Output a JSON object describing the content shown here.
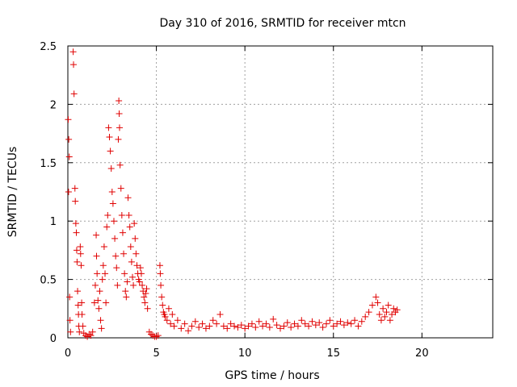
{
  "chart_data": {
    "type": "scatter",
    "title": "Day 310 of 2016, SRMTID for receiver mtcn",
    "xlabel": "GPS time / hours",
    "ylabel": "SRMTID / TECUs",
    "xlim": [
      0,
      24
    ],
    "ylim": [
      0,
      2.5
    ],
    "xticks": [
      0,
      5,
      10,
      15,
      20
    ],
    "yticks": [
      0,
      0.5,
      1,
      1.5,
      2,
      2.5
    ],
    "xtick_labels": [
      "0",
      "5",
      "10",
      "15",
      "20"
    ],
    "ytick_labels": [
      "0",
      "0.5",
      "1",
      "1.5",
      "2",
      "2.5"
    ],
    "grid": true,
    "marker": "+",
    "series": [
      {
        "name": "SRMTID",
        "color": "#e00000",
        "points": [
          [
            0.02,
            1.87
          ],
          [
            0.05,
            1.7
          ],
          [
            0.08,
            1.55
          ],
          [
            0.04,
            1.25
          ],
          [
            0.1,
            0.35
          ],
          [
            0.12,
            0.15
          ],
          [
            0.15,
            0.05
          ],
          [
            0.3,
            2.45
          ],
          [
            0.32,
            2.34
          ],
          [
            0.35,
            2.09
          ],
          [
            0.4,
            1.28
          ],
          [
            0.42,
            1.17
          ],
          [
            0.45,
            0.98
          ],
          [
            0.48,
            0.9
          ],
          [
            0.5,
            0.75
          ],
          [
            0.52,
            0.65
          ],
          [
            0.55,
            0.4
          ],
          [
            0.58,
            0.28
          ],
          [
            0.6,
            0.2
          ],
          [
            0.62,
            0.1
          ],
          [
            0.65,
            0.05
          ],
          [
            0.7,
            0.78
          ],
          [
            0.72,
            0.72
          ],
          [
            0.75,
            0.62
          ],
          [
            0.78,
            0.3
          ],
          [
            0.8,
            0.2
          ],
          [
            0.85,
            0.1
          ],
          [
            0.9,
            0.04
          ],
          [
            1.0,
            0.02
          ],
          [
            1.1,
            0.01
          ],
          [
            1.2,
            0.03
          ],
          [
            1.3,
            0.02
          ],
          [
            1.4,
            0.05
          ],
          [
            1.5,
            0.3
          ],
          [
            1.55,
            0.45
          ],
          [
            1.6,
            0.88
          ],
          [
            1.62,
            0.7
          ],
          [
            1.65,
            0.55
          ],
          [
            1.7,
            0.32
          ],
          [
            1.75,
            0.25
          ],
          [
            1.8,
            0.4
          ],
          [
            1.85,
            0.15
          ],
          [
            1.9,
            0.08
          ],
          [
            1.95,
            0.5
          ],
          [
            2.0,
            0.62
          ],
          [
            2.05,
            0.78
          ],
          [
            2.1,
            0.55
          ],
          [
            2.15,
            0.3
          ],
          [
            2.2,
            0.95
          ],
          [
            2.25,
            1.05
          ],
          [
            2.3,
            1.8
          ],
          [
            2.35,
            1.72
          ],
          [
            2.4,
            1.6
          ],
          [
            2.45,
            1.45
          ],
          [
            2.5,
            1.25
          ],
          [
            2.55,
            1.15
          ],
          [
            2.6,
            1.0
          ],
          [
            2.65,
            0.85
          ],
          [
            2.7,
            0.7
          ],
          [
            2.75,
            0.6
          ],
          [
            2.8,
            0.45
          ],
          [
            2.85,
            1.7
          ],
          [
            2.88,
            2.03
          ],
          [
            2.9,
            1.92
          ],
          [
            2.92,
            1.8
          ],
          [
            2.95,
            1.48
          ],
          [
            3.0,
            1.28
          ],
          [
            3.05,
            1.05
          ],
          [
            3.1,
            0.9
          ],
          [
            3.15,
            0.72
          ],
          [
            3.2,
            0.55
          ],
          [
            3.25,
            0.4
          ],
          [
            3.3,
            0.35
          ],
          [
            3.35,
            0.48
          ],
          [
            3.4,
            1.2
          ],
          [
            3.45,
            1.05
          ],
          [
            3.5,
            0.95
          ],
          [
            3.55,
            0.78
          ],
          [
            3.6,
            0.65
          ],
          [
            3.65,
            0.52
          ],
          [
            3.7,
            0.45
          ],
          [
            3.75,
            0.98
          ],
          [
            3.8,
            0.85
          ],
          [
            3.85,
            0.72
          ],
          [
            3.9,
            0.62
          ],
          [
            3.95,
            0.55
          ],
          [
            4.0,
            0.5
          ],
          [
            4.05,
            0.48
          ],
          [
            4.1,
            0.6
          ],
          [
            4.15,
            0.55
          ],
          [
            4.2,
            0.45
          ],
          [
            4.25,
            0.4
          ],
          [
            4.3,
            0.35
          ],
          [
            4.35,
            0.3
          ],
          [
            4.4,
            0.38
          ],
          [
            4.45,
            0.42
          ],
          [
            4.5,
            0.25
          ],
          [
            4.6,
            0.05
          ],
          [
            4.7,
            0.03
          ],
          [
            4.8,
            0.02
          ],
          [
            4.9,
            0.01
          ],
          [
            5.0,
            0.01
          ],
          [
            5.1,
            0.02
          ],
          [
            5.2,
            0.62
          ],
          [
            5.22,
            0.55
          ],
          [
            5.25,
            0.45
          ],
          [
            5.3,
            0.35
          ],
          [
            5.35,
            0.28
          ],
          [
            5.4,
            0.22
          ],
          [
            5.45,
            0.2
          ],
          [
            5.5,
            0.18
          ],
          [
            5.6,
            0.15
          ],
          [
            5.7,
            0.25
          ],
          [
            5.8,
            0.12
          ],
          [
            5.9,
            0.2
          ],
          [
            6.0,
            0.1
          ],
          [
            6.2,
            0.15
          ],
          [
            6.4,
            0.08
          ],
          [
            6.6,
            0.12
          ],
          [
            6.8,
            0.06
          ],
          [
            7.0,
            0.1
          ],
          [
            7.2,
            0.14
          ],
          [
            7.4,
            0.09
          ],
          [
            7.6,
            0.12
          ],
          [
            7.8,
            0.08
          ],
          [
            8.0,
            0.1
          ],
          [
            8.2,
            0.15
          ],
          [
            8.4,
            0.12
          ],
          [
            8.6,
            0.2
          ],
          [
            8.8,
            0.1
          ],
          [
            9.0,
            0.08
          ],
          [
            9.2,
            0.12
          ],
          [
            9.4,
            0.1
          ],
          [
            9.6,
            0.09
          ],
          [
            9.8,
            0.11
          ],
          [
            10.0,
            0.08
          ],
          [
            10.2,
            0.1
          ],
          [
            10.4,
            0.12
          ],
          [
            10.6,
            0.09
          ],
          [
            10.8,
            0.14
          ],
          [
            11.0,
            0.1
          ],
          [
            11.2,
            0.12
          ],
          [
            11.4,
            0.09
          ],
          [
            11.6,
            0.16
          ],
          [
            11.8,
            0.11
          ],
          [
            12.0,
            0.08
          ],
          [
            12.2,
            0.1
          ],
          [
            12.4,
            0.13
          ],
          [
            12.6,
            0.09
          ],
          [
            12.8,
            0.12
          ],
          [
            13.0,
            0.1
          ],
          [
            13.2,
            0.15
          ],
          [
            13.4,
            0.12
          ],
          [
            13.6,
            0.1
          ],
          [
            13.8,
            0.14
          ],
          [
            14.0,
            0.11
          ],
          [
            14.2,
            0.13
          ],
          [
            14.4,
            0.09
          ],
          [
            14.6,
            0.12
          ],
          [
            14.8,
            0.15
          ],
          [
            15.0,
            0.1
          ],
          [
            15.2,
            0.12
          ],
          [
            15.4,
            0.14
          ],
          [
            15.6,
            0.11
          ],
          [
            15.8,
            0.13
          ],
          [
            16.0,
            0.12
          ],
          [
            16.2,
            0.15
          ],
          [
            16.4,
            0.1
          ],
          [
            16.6,
            0.14
          ],
          [
            16.8,
            0.18
          ],
          [
            17.0,
            0.22
          ],
          [
            17.2,
            0.28
          ],
          [
            17.4,
            0.35
          ],
          [
            17.5,
            0.3
          ],
          [
            17.6,
            0.2
          ],
          [
            17.7,
            0.15
          ],
          [
            17.8,
            0.25
          ],
          [
            17.9,
            0.18
          ],
          [
            18.0,
            0.22
          ],
          [
            18.1,
            0.28
          ],
          [
            18.2,
            0.15
          ],
          [
            18.3,
            0.2
          ],
          [
            18.4,
            0.25
          ],
          [
            18.5,
            0.22
          ],
          [
            18.6,
            0.24
          ]
        ]
      }
    ]
  }
}
